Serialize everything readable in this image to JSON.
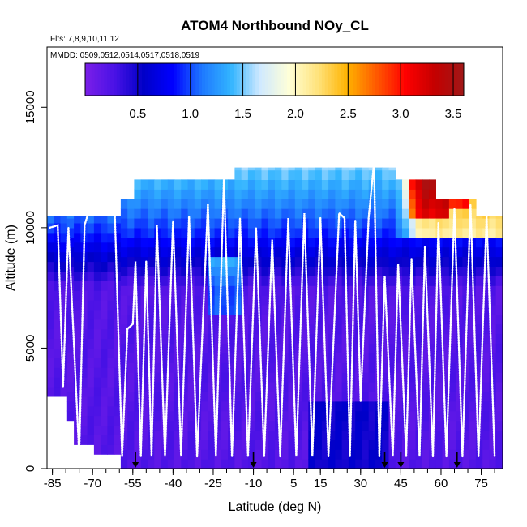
{
  "chart_data": {
    "type": "heatmap",
    "title": "ATOM4 Northbound NOy_CL",
    "flights_label": "Flts: 7,8,9,10,11,12",
    "dates_label": "MMDD: 0509,0512,0514,0517,0518,0519",
    "xlabel": "Latitude (deg N)",
    "ylabel": "Altitude (m)",
    "xlim": [
      -87,
      83
    ],
    "ylim": [
      0,
      17500
    ],
    "x_ticks": [
      -85,
      -70,
      -55,
      -40,
      -25,
      -10,
      5,
      15,
      30,
      45,
      60,
      75
    ],
    "x_tick_labels": [
      "-85",
      "-70",
      "-55",
      "-40",
      "-25",
      "-10",
      "5",
      "15",
      "30",
      "45",
      "60",
      "75"
    ],
    "y_ticks": [
      0,
      5000,
      10000,
      15000
    ],
    "y_tick_labels": [
      "0",
      "5000",
      "10000",
      "15000"
    ],
    "colorbar": {
      "min": 0,
      "max": 3.6,
      "ticks": [
        0.5,
        1.0,
        1.5,
        2.0,
        2.5,
        3.0,
        3.5
      ],
      "tick_labels": [
        "0.5",
        "1.0",
        "1.5",
        "2.0",
        "2.5",
        "3.0",
        "3.5"
      ],
      "colors": [
        "#7b1fe8",
        "#4a12e6",
        "#0000c8",
        "#0000ff",
        "#1e78ff",
        "#32b4ff",
        "#cfe9ff",
        "#ffffd8",
        "#ffe27a",
        "#ffb300",
        "#ff5a00",
        "#ff0000",
        "#c40000",
        "#a01818"
      ]
    },
    "descent_markers_lat": [
      -54,
      -10,
      39,
      45,
      66
    ],
    "color_white": "#ffffff",
    "color_marker": "#000000"
  }
}
